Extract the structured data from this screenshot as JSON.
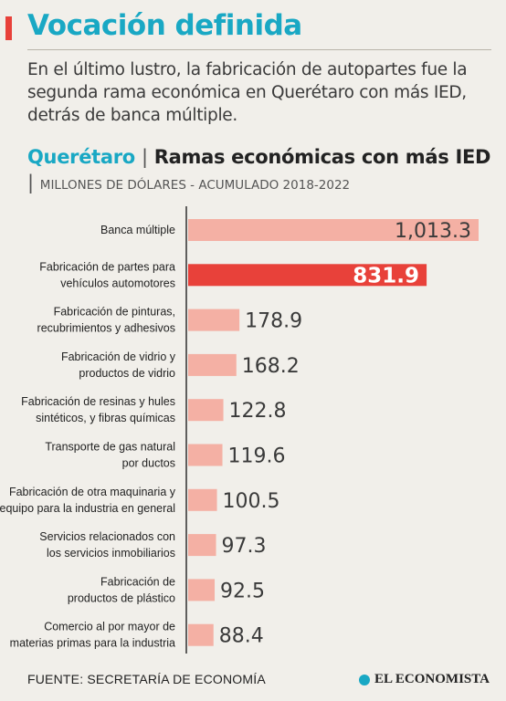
{
  "header": {
    "title": "Vocación definida",
    "subtitle": "En el último lustro, la fabricación de autopartes fue la segunda rama económica en Querétaro con más IED, detrás de banca múltiple."
  },
  "chart_header": {
    "location": "Querétaro",
    "separator": "|",
    "title": "Ramas económicas con más IED",
    "separator2": "|",
    "unit": "MILLONES DE DÓLARES - ACUMULADO 2018-2022"
  },
  "colors": {
    "accent": "#19a8c4",
    "highlight": "#e8413a",
    "bar": "#f4b0a4",
    "background": "#f1efea"
  },
  "chart_data": {
    "type": "bar",
    "orientation": "horizontal",
    "categories": [
      "Banca múltiple",
      "Fabricación de partes para vehículos automotores",
      "Fabricación de pinturas, recubrimientos y adhesivos",
      "Fabricación de vidrio y productos de vidrio",
      "Fabricación de resinas y hules sintéticos, y fibras químicas",
      "Transporte de gas natural por ductos",
      "Fabricación de otra maquinaria y equipo para la industria en general",
      "Servicios relacionados con los servicios inmobiliarios",
      "Fabricación de productos de plástico",
      "Comercio al por mayor de materias primas para la industria"
    ],
    "category_lines": [
      [
        "Banca múltiple"
      ],
      [
        "Fabricación de partes para",
        "vehículos automotores"
      ],
      [
        "Fabricación de pinturas,",
        "recubrimientos y adhesivos"
      ],
      [
        "Fabricación de vidrio y",
        "productos de vidrio"
      ],
      [
        "Fabricación de resinas y hules",
        "sintéticos, y fibras químicas"
      ],
      [
        "Transporte de gas natural",
        "por ductos"
      ],
      [
        "Fabricación de otra maquinaria y",
        "equipo para la industria en general"
      ],
      [
        "Servicios relacionados con",
        "los servicios inmobiliarios"
      ],
      [
        "Fabricación de",
        "productos de plástico"
      ],
      [
        "Comercio al por mayor de",
        "materias primas para la industria"
      ]
    ],
    "values": [
      1013.3,
      831.9,
      178.9,
      168.2,
      122.8,
      119.6,
      100.5,
      97.3,
      92.5,
      88.4
    ],
    "value_labels": [
      "1,013.3",
      "831.9",
      "178.9",
      "168.2",
      "122.8",
      "119.6",
      "100.5",
      "97.3",
      "92.5",
      "88.4"
    ],
    "highlight_index": 1,
    "title": "Ramas económicas con más IED",
    "xlabel": "",
    "ylabel": "",
    "xlim": [
      0,
      1013.3
    ],
    "grid": false,
    "legend": "none"
  },
  "footer": {
    "source": "FUENTE: SECRETARÍA DE ECONOMÍA",
    "brand": "EL ECONOMISTA"
  }
}
